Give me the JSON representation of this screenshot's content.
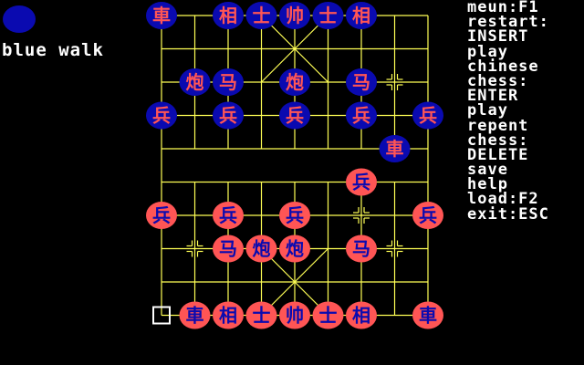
{
  "status": {
    "turn_color": "#0a0ab0",
    "turn_text": "blue walk"
  },
  "help_menu": [
    "meun:F1",
    "restart:",
    "INSERT",
    "play",
    "chinese",
    "chess:",
    "ENTER",
    "play",
    "repent",
    "chess:",
    "DELETE",
    "save",
    "help",
    "load:F2",
    "exit:ESC"
  ],
  "board": {
    "files": 9,
    "ranks": 10,
    "line_color": "#ffff55",
    "background_color": "#000000",
    "selected": {
      "file": 0,
      "rank": 9
    },
    "markers": [
      {
        "file": 7,
        "rank": 2
      },
      {
        "file": 6,
        "rank": 6
      },
      {
        "file": 1,
        "rank": 7
      },
      {
        "file": 7,
        "rank": 7
      }
    ]
  },
  "sides": {
    "blue": {
      "fill": "#0a0ab0",
      "text": "#ff5555"
    },
    "red": {
      "fill": "#ff5555",
      "text": "#0a0ab0"
    }
  },
  "pieces": [
    {
      "side": "blue",
      "label": "車",
      "name": "chariot",
      "file": 0,
      "rank": 0
    },
    {
      "side": "blue",
      "label": "相",
      "name": "elephant",
      "file": 2,
      "rank": 0
    },
    {
      "side": "blue",
      "label": "士",
      "name": "advisor",
      "file": 3,
      "rank": 0
    },
    {
      "side": "blue",
      "label": "帅",
      "name": "general",
      "file": 4,
      "rank": 0
    },
    {
      "side": "blue",
      "label": "士",
      "name": "advisor",
      "file": 5,
      "rank": 0
    },
    {
      "side": "blue",
      "label": "相",
      "name": "elephant",
      "file": 6,
      "rank": 0
    },
    {
      "side": "blue",
      "label": "炮",
      "name": "cannon",
      "file": 1,
      "rank": 2
    },
    {
      "side": "blue",
      "label": "马",
      "name": "horse",
      "file": 2,
      "rank": 2
    },
    {
      "side": "blue",
      "label": "炮",
      "name": "cannon",
      "file": 4,
      "rank": 2
    },
    {
      "side": "blue",
      "label": "马",
      "name": "horse",
      "file": 6,
      "rank": 2
    },
    {
      "side": "blue",
      "label": "兵",
      "name": "soldier",
      "file": 0,
      "rank": 3
    },
    {
      "side": "blue",
      "label": "兵",
      "name": "soldier",
      "file": 2,
      "rank": 3
    },
    {
      "side": "blue",
      "label": "兵",
      "name": "soldier",
      "file": 4,
      "rank": 3
    },
    {
      "side": "blue",
      "label": "兵",
      "name": "soldier",
      "file": 6,
      "rank": 3
    },
    {
      "side": "blue",
      "label": "兵",
      "name": "soldier",
      "file": 8,
      "rank": 3
    },
    {
      "side": "blue",
      "label": "車",
      "name": "chariot",
      "file": 7,
      "rank": 4
    },
    {
      "side": "red",
      "label": "兵",
      "name": "soldier",
      "file": 6,
      "rank": 5
    },
    {
      "side": "red",
      "label": "兵",
      "name": "soldier",
      "file": 0,
      "rank": 6
    },
    {
      "side": "red",
      "label": "兵",
      "name": "soldier",
      "file": 2,
      "rank": 6
    },
    {
      "side": "red",
      "label": "兵",
      "name": "soldier",
      "file": 4,
      "rank": 6
    },
    {
      "side": "red",
      "label": "兵",
      "name": "soldier",
      "file": 8,
      "rank": 6
    },
    {
      "side": "red",
      "label": "马",
      "name": "horse",
      "file": 2,
      "rank": 7
    },
    {
      "side": "red",
      "label": "炮",
      "name": "cannon",
      "file": 3,
      "rank": 7
    },
    {
      "side": "red",
      "label": "炮",
      "name": "cannon",
      "file": 4,
      "rank": 7
    },
    {
      "side": "red",
      "label": "马",
      "name": "horse",
      "file": 6,
      "rank": 7
    },
    {
      "side": "red",
      "label": "車",
      "name": "chariot",
      "file": 1,
      "rank": 9
    },
    {
      "side": "red",
      "label": "相",
      "name": "elephant",
      "file": 2,
      "rank": 9
    },
    {
      "side": "red",
      "label": "士",
      "name": "advisor",
      "file": 3,
      "rank": 9
    },
    {
      "side": "red",
      "label": "帅",
      "name": "general",
      "file": 4,
      "rank": 9
    },
    {
      "side": "red",
      "label": "士",
      "name": "advisor",
      "file": 5,
      "rank": 9
    },
    {
      "side": "red",
      "label": "相",
      "name": "elephant",
      "file": 6,
      "rank": 9
    },
    {
      "side": "red",
      "label": "車",
      "name": "chariot",
      "file": 8,
      "rank": 9
    }
  ]
}
